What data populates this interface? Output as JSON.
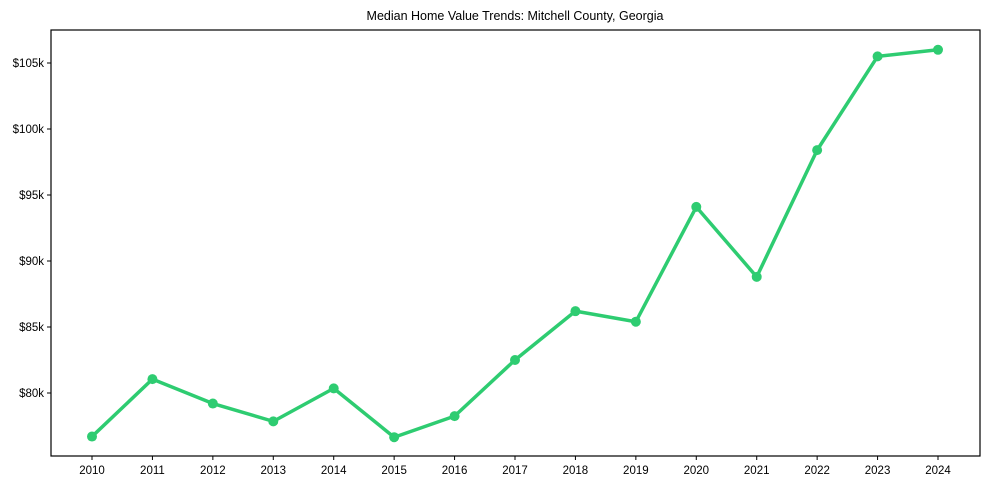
{
  "chart_data": {
    "type": "line",
    "title": "Median Home Value Trends: Mitchell County, Georgia",
    "xlabel": "",
    "ylabel": "",
    "categories": [
      "2010",
      "2011",
      "2012",
      "2013",
      "2014",
      "2015",
      "2016",
      "2017",
      "2018",
      "2019",
      "2020",
      "2021",
      "2022",
      "2023",
      "2024"
    ],
    "series": [
      {
        "name": "Median Home Value",
        "color": "#2ecc71",
        "values": [
          76700,
          81050,
          79200,
          77850,
          80350,
          76650,
          78250,
          82500,
          86200,
          85400,
          94100,
          88800,
          98400,
          105500,
          106000
        ]
      }
    ],
    "yticks": [
      80000,
      85000,
      90000,
      95000,
      100000,
      105000
    ],
    "ytick_labels": [
      "$80k",
      "$85k",
      "$90k",
      "$95k",
      "$100k",
      "$105k"
    ],
    "ylim": [
      75500,
      107400
    ],
    "grid": false,
    "legend": "none"
  }
}
